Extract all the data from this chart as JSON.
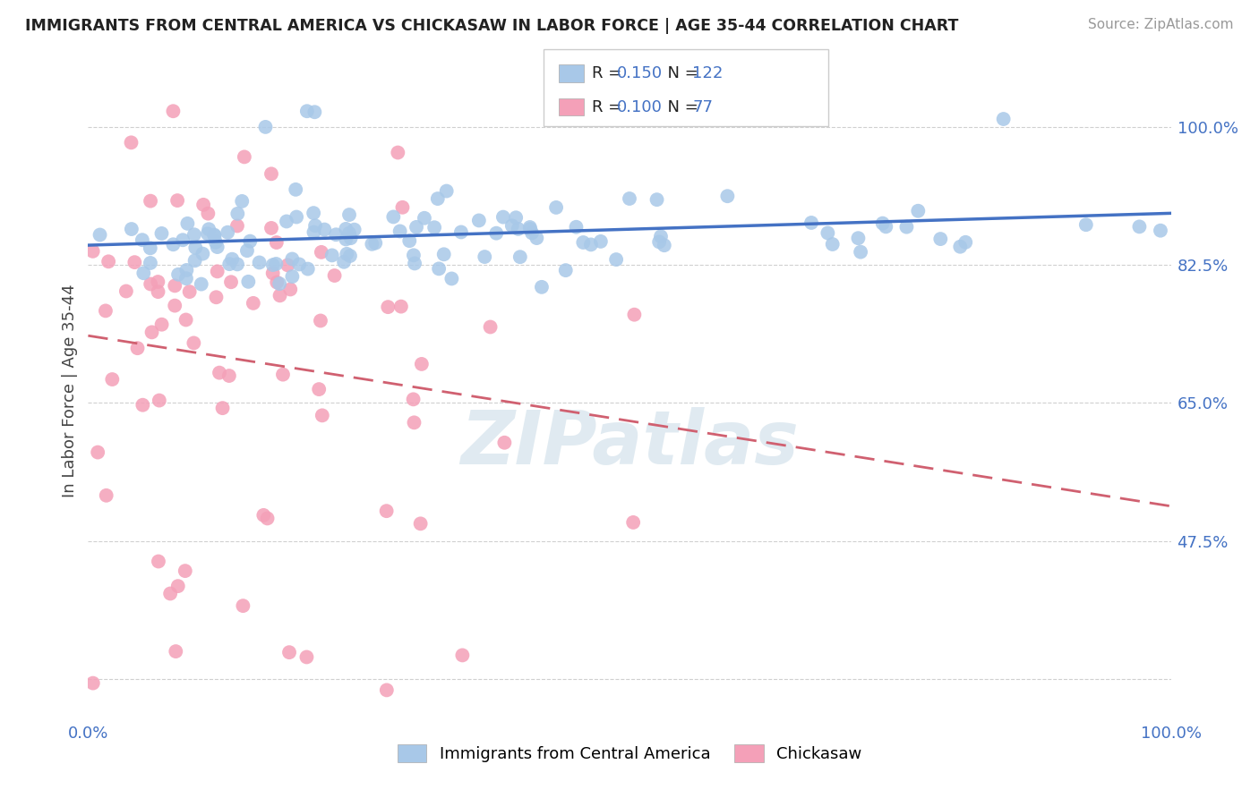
{
  "title": "IMMIGRANTS FROM CENTRAL AMERICA VS CHICKASAW IN LABOR FORCE | AGE 35-44 CORRELATION CHART",
  "source": "Source: ZipAtlas.com",
  "ylabel": "In Labor Force | Age 35-44",
  "xlim": [
    0.0,
    1.0
  ],
  "ylim": [
    0.25,
    1.08
  ],
  "yticks": [
    0.3,
    0.475,
    0.65,
    0.825,
    1.0
  ],
  "ytick_labels": [
    "",
    "47.5%",
    "65.0%",
    "82.5%",
    "100.0%"
  ],
  "xtick_labels": [
    "0.0%",
    "100.0%"
  ],
  "blue_R": 0.15,
  "blue_N": 122,
  "pink_R": 0.1,
  "pink_N": 77,
  "blue_fill": "#a8c8e8",
  "blue_line": "#4472c4",
  "pink_fill": "#f4a0b8",
  "pink_line": "#d06070",
  "watermark": "ZIPatlas",
  "watermark_color": "#ccdde8",
  "legend_blue_label": "Immigrants from Central America",
  "legend_pink_label": "Chickasaw",
  "title_color": "#222222",
  "axis_color": "#4472c4",
  "grid_color": "#d0d0d0",
  "bg_color": "#ffffff"
}
